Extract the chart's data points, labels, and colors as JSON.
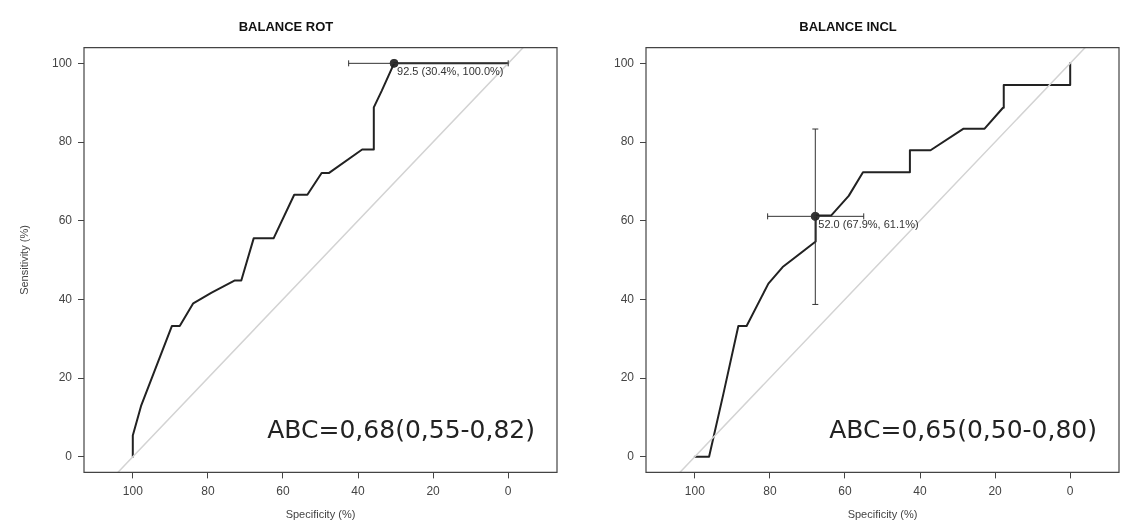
{
  "chart_data": [
    {
      "type": "line",
      "title": "BALANCE ROT",
      "xlabel": "Specificity (%)",
      "ylabel": "Sensitivity (%)",
      "xlim": [
        113,
        -13
      ],
      "ylim": [
        -4,
        104
      ],
      "xticks": [
        100,
        80,
        60,
        40,
        20,
        0
      ],
      "yticks": [
        0,
        20,
        40,
        60,
        80,
        100
      ],
      "grid": false,
      "legend": false,
      "series": [
        {
          "type": "line",
          "color": "#d3d3d3",
          "x": [
            104,
            -4
          ],
          "values": [
            -4,
            104
          ]
        },
        {
          "type": "line",
          "color": "#222222",
          "x": [
            100,
            100,
            97.8,
            89.6,
            87.5,
            83.9,
            79,
            72.8,
            71.1,
            67.8,
            62.5,
            57,
            53.5,
            49.7,
            47.8,
            38.9,
            36,
            35.8,
            33.7,
            30.4,
            0
          ],
          "values": [
            0,
            5.4,
            12.9,
            33.2,
            33.2,
            39,
            41.7,
            44.8,
            44.8,
            55.5,
            55.5,
            66.6,
            66.6,
            72.1,
            72.1,
            78.1,
            78.1,
            88.8,
            93,
            100,
            100
          ]
        },
        {
          "type": "scatter",
          "color": "#333333",
          "marker": "circle",
          "x": [
            30.4
          ],
          "values": [
            100
          ],
          "xerrors": [
            [
              0,
              42.5
            ]
          ]
        }
      ],
      "annotations": [
        {
          "text": "92.5 (30.4%, 100.0%)",
          "x": 30.4,
          "y": 100
        },
        "ABC=0,68(0,55-0,82)"
      ]
    },
    {
      "type": "line",
      "title": "BALANCE INCL",
      "xlabel": "Specificity (%)",
      "xlim": [
        113,
        -13
      ],
      "ylim": [
        -4,
        104
      ],
      "xticks": [
        100,
        80,
        60,
        40,
        20,
        0
      ],
      "yticks": [
        0,
        20,
        40,
        60,
        80,
        100
      ],
      "grid": false,
      "legend": false,
      "series": [
        {
          "type": "line",
          "color": "#d3d3d3",
          "x": [
            104,
            -4
          ],
          "values": [
            -4,
            104
          ]
        },
        {
          "type": "line",
          "color": "#222222",
          "x": [
            100,
            96.2,
            92.4,
            88.4,
            86.2,
            80.4,
            76.6,
            67.8,
            67.8,
            63.7,
            59,
            55.2,
            42.7,
            42.7,
            37.2,
            28.4,
            22.8,
            17.9,
            17.7,
            0,
            0
          ],
          "values": [
            0,
            0,
            15.9,
            33.2,
            33.2,
            44,
            48.2,
            54.7,
            61.3,
            61.3,
            66.3,
            72.3,
            72.3,
            77.9,
            77.9,
            83.4,
            83.4,
            88.7,
            94.5,
            94.5,
            100
          ]
        },
        {
          "type": "scatter",
          "color": "#333333",
          "marker": "circle",
          "x": [
            67.9
          ],
          "values": [
            61.1
          ],
          "errors": [
            [
              38.7,
              83.3
            ]
          ],
          "xerrors": [
            [
              55,
              80.6
            ]
          ]
        }
      ],
      "annotations": [
        {
          "text": "52.0 (67.9%, 61.1%)",
          "x": 67.9,
          "y": 61.1
        },
        "ABC=0,65(0,50-0,80)"
      ]
    }
  ]
}
